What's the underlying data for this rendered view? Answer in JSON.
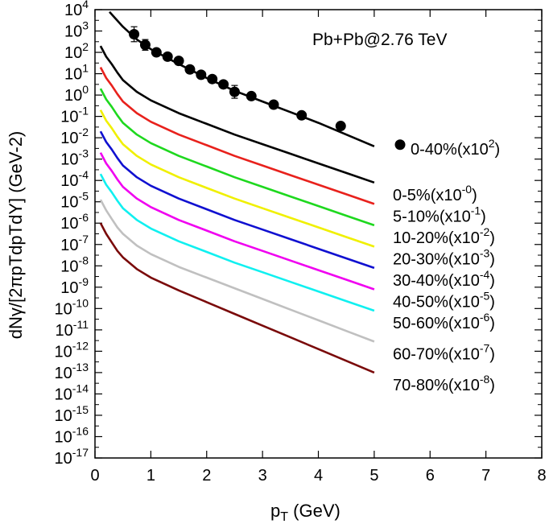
{
  "chart_data": {
    "type": "line",
    "title": "",
    "annotation": "Pb+Pb@2.76 TeV",
    "xlabel": "pT (GeV)",
    "xlabel_main": "p",
    "xlabel_sub": "T",
    "xlabel_rest": " (GeV)",
    "ylabel": "dNγ/[2πpTdpTdY] (GeV-2)",
    "xlim": [
      0,
      8
    ],
    "ylim_log10": [
      -17,
      4
    ],
    "yscale": "log",
    "x_ticks": [
      0,
      1,
      2,
      3,
      4,
      5,
      6,
      7,
      8
    ],
    "x_tick_labels": [
      "0",
      "1",
      "2",
      "3",
      "4",
      "5",
      "6",
      "7",
      "8"
    ],
    "y_tick_exponents": [
      4,
      3,
      2,
      1,
      0,
      -1,
      -2,
      -3,
      -4,
      -5,
      -6,
      -7,
      -8,
      -9,
      -10,
      -11,
      -12,
      -13,
      -14,
      -15,
      -16,
      -17
    ],
    "y_tick_base": "10",
    "series": [
      {
        "name": "0-40%(x10^2)",
        "label_main": "0-40%(x10",
        "label_exp": "2",
        "label_end": ")",
        "color": "#000000",
        "marker": "dot",
        "x": [
          0.26,
          0.5,
          0.75,
          1.0,
          1.5,
          2.0,
          2.5,
          3.0,
          3.5,
          4.0,
          4.5,
          5.0
        ],
        "log10_y": [
          3.9,
          3.2,
          2.6,
          2.15,
          1.45,
          0.8,
          0.2,
          -0.3,
          -0.8,
          -1.3,
          -1.85,
          -2.4
        ]
      },
      {
        "name": "0-5%(x10^-0)",
        "label_main": "0-5%(x10",
        "label_exp": "-0",
        "label_end": ")",
        "color": "#000000",
        "x": [
          0.1,
          0.2,
          0.3,
          0.4,
          0.5,
          0.75,
          1.0,
          1.5,
          2.0,
          2.5,
          3.0,
          3.5,
          4.0,
          4.5,
          5.0
        ],
        "log10_y": [
          2.3,
          1.8,
          1.45,
          1.05,
          0.7,
          0.15,
          -0.25,
          -0.85,
          -1.35,
          -1.85,
          -2.3,
          -2.75,
          -3.2,
          -3.65,
          -4.1
        ]
      },
      {
        "name": "5-10%(x10^-1)",
        "label_main": "5-10%(x10",
        "label_exp": "-1",
        "label_end": ")",
        "color": "#e8211c",
        "x": [
          0.1,
          0.2,
          0.3,
          0.4,
          0.5,
          0.75,
          1.0,
          1.5,
          2.0,
          2.5,
          3.0,
          3.5,
          4.0,
          4.5,
          5.0
        ],
        "log10_y": [
          1.3,
          0.8,
          0.45,
          0.05,
          -0.3,
          -0.85,
          -1.25,
          -1.85,
          -2.35,
          -2.85,
          -3.3,
          -3.75,
          -4.2,
          -4.65,
          -5.1
        ]
      },
      {
        "name": "10-20%(x10^-2)",
        "label_main": "10-20%(x10",
        "label_exp": "-2",
        "label_end": ")",
        "color": "#1ed81e",
        "x": [
          0.1,
          0.2,
          0.3,
          0.4,
          0.5,
          0.75,
          1.0,
          1.5,
          2.0,
          2.5,
          3.0,
          3.5,
          4.0,
          4.5,
          5.0
        ],
        "log10_y": [
          0.3,
          -0.2,
          -0.55,
          -0.95,
          -1.3,
          -1.85,
          -2.25,
          -2.85,
          -3.35,
          -3.85,
          -4.3,
          -4.75,
          -5.2,
          -5.65,
          -6.1
        ]
      },
      {
        "name": "20-30%(x10^-3)",
        "label_main": "20-30%(x10",
        "label_exp": "-3",
        "label_end": ")",
        "color": "#f0f000",
        "x": [
          0.1,
          0.2,
          0.3,
          0.4,
          0.5,
          0.75,
          1.0,
          1.5,
          2.0,
          2.5,
          3.0,
          3.5,
          4.0,
          4.5,
          5.0
        ],
        "log10_y": [
          -0.7,
          -1.2,
          -1.55,
          -1.95,
          -2.3,
          -2.85,
          -3.25,
          -3.85,
          -4.35,
          -4.85,
          -5.3,
          -5.75,
          -6.2,
          -6.65,
          -7.1
        ]
      },
      {
        "name": "30-40%(x10^-4)",
        "label_main": "30-40%(x10",
        "label_exp": "-4",
        "label_end": ")",
        "color": "#1010d0",
        "x": [
          0.1,
          0.2,
          0.3,
          0.4,
          0.5,
          0.75,
          1.0,
          1.5,
          2.0,
          2.5,
          3.0,
          3.5,
          4.0,
          4.5,
          5.0
        ],
        "log10_y": [
          -1.7,
          -2.2,
          -2.55,
          -2.95,
          -3.3,
          -3.85,
          -4.25,
          -4.85,
          -5.35,
          -5.85,
          -6.3,
          -6.75,
          -7.2,
          -7.65,
          -8.1
        ]
      },
      {
        "name": "40-50%(x10^-5)",
        "label_main": "40-50%(x10",
        "label_exp": "-5",
        "label_end": ")",
        "color": "#f000f0",
        "x": [
          0.1,
          0.2,
          0.3,
          0.4,
          0.5,
          0.75,
          1.0,
          1.5,
          2.0,
          2.5,
          3.0,
          3.5,
          4.0,
          4.5,
          5.0
        ],
        "log10_y": [
          -2.7,
          -3.2,
          -3.55,
          -3.95,
          -4.3,
          -4.85,
          -5.25,
          -5.85,
          -6.35,
          -6.85,
          -7.3,
          -7.75,
          -8.2,
          -8.65,
          -9.1
        ]
      },
      {
        "name": "50-60%(x10^-6)",
        "label_main": "50-60%(x10",
        "label_exp": "-6",
        "label_end": ")",
        "color": "#10f0f0",
        "x": [
          0.1,
          0.2,
          0.3,
          0.4,
          0.5,
          0.75,
          1.0,
          1.5,
          2.0,
          2.5,
          3.0,
          3.5,
          4.0,
          4.5,
          5.0
        ],
        "log10_y": [
          -3.7,
          -4.2,
          -4.55,
          -4.95,
          -5.3,
          -5.85,
          -6.25,
          -6.85,
          -7.35,
          -7.85,
          -8.3,
          -8.75,
          -9.2,
          -9.65,
          -10.1
        ]
      },
      {
        "name": "60-70%(x10^-7)",
        "label_main": "60-70%(x10",
        "label_exp": "-7",
        "label_end": ")",
        "color": "#c0c0c0",
        "x": [
          0.1,
          0.2,
          0.3,
          0.4,
          0.5,
          0.75,
          1.0,
          1.5,
          2.0,
          2.5,
          3.0,
          3.5,
          4.0,
          4.5,
          5.0
        ],
        "log10_y": [
          -4.9,
          -5.4,
          -5.8,
          -6.2,
          -6.5,
          -7.05,
          -7.45,
          -8.05,
          -8.55,
          -9.05,
          -9.55,
          -10.05,
          -10.55,
          -11.05,
          -11.55
        ]
      },
      {
        "name": "70-80%(x10^-8)",
        "label_main": "70-80%(x10",
        "label_exp": "-8",
        "label_end": ")",
        "color": "#7a0a0a",
        "x": [
          0.1,
          0.2,
          0.3,
          0.4,
          0.5,
          0.75,
          1.0,
          1.5,
          2.0,
          2.5,
          3.0,
          3.5,
          4.0,
          4.5,
          5.0
        ],
        "log10_y": [
          -6.0,
          -6.5,
          -6.9,
          -7.3,
          -7.6,
          -8.15,
          -8.55,
          -9.15,
          -9.7,
          -10.25,
          -10.8,
          -11.35,
          -11.9,
          -12.45,
          -13.0
        ]
      }
    ],
    "data_points": {
      "name": "0-40% data",
      "x": [
        0.7,
        0.9,
        1.1,
        1.3,
        1.5,
        1.7,
        1.9,
        2.1,
        2.3,
        2.5,
        2.8,
        3.2,
        3.7,
        4.4
      ],
      "log10_y": [
        2.85,
        2.35,
        2.0,
        1.8,
        1.6,
        1.2,
        0.95,
        0.75,
        0.5,
        0.15,
        -0.05,
        -0.45,
        -0.95,
        -1.45
      ],
      "error_log10": [
        0.35,
        0.25,
        0.15,
        0.12,
        0.1,
        0.15,
        0.12,
        0.1,
        0.12,
        0.3,
        0.12,
        0.12,
        0.15,
        0.1
      ]
    }
  }
}
